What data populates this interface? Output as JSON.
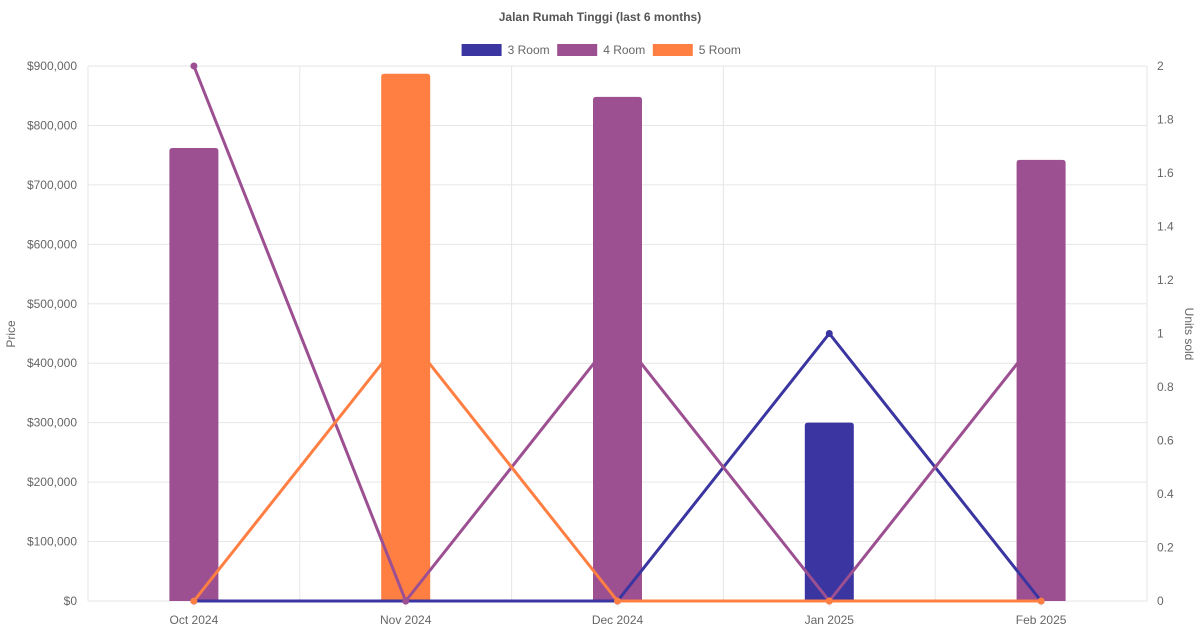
{
  "chart_data": {
    "type": "bar",
    "title": "Jalan Rumah Tinggi (last 6 months)",
    "xlabel": "",
    "ylabel": "Price",
    "y2label": "Units sold",
    "categories": [
      "Oct 2024",
      "Nov 2024",
      "Dec 2024",
      "Jan 2025",
      "Feb 2025"
    ],
    "ylim": [
      0,
      900000
    ],
    "y2lim": [
      0,
      2
    ],
    "y_ticks": [
      "$0",
      "$100,000",
      "$200,000",
      "$300,000",
      "$400,000",
      "$500,000",
      "$600,000",
      "$700,000",
      "$800,000",
      "$900,000"
    ],
    "y2_ticks": [
      "0",
      "0.2",
      "0.4",
      "0.6",
      "0.8",
      "1",
      "1.2",
      "1.4",
      "1.6",
      "1.8",
      "2"
    ],
    "grid": true,
    "legend_position": "top",
    "series": [
      {
        "name": "3 Room",
        "color": "#3a35a0",
        "price": [
          null,
          null,
          null,
          300000,
          null
        ],
        "units": [
          0,
          0,
          0,
          1,
          0
        ]
      },
      {
        "name": "4 Room",
        "color": "#9c4f91",
        "price": [
          762000,
          null,
          848000,
          null,
          742000
        ],
        "units": [
          2,
          0,
          1,
          0,
          1
        ]
      },
      {
        "name": "5 Room",
        "color": "#ff7f43",
        "price": [
          null,
          887000,
          null,
          null,
          null
        ],
        "units": [
          0,
          1,
          0,
          0,
          0
        ]
      }
    ]
  }
}
